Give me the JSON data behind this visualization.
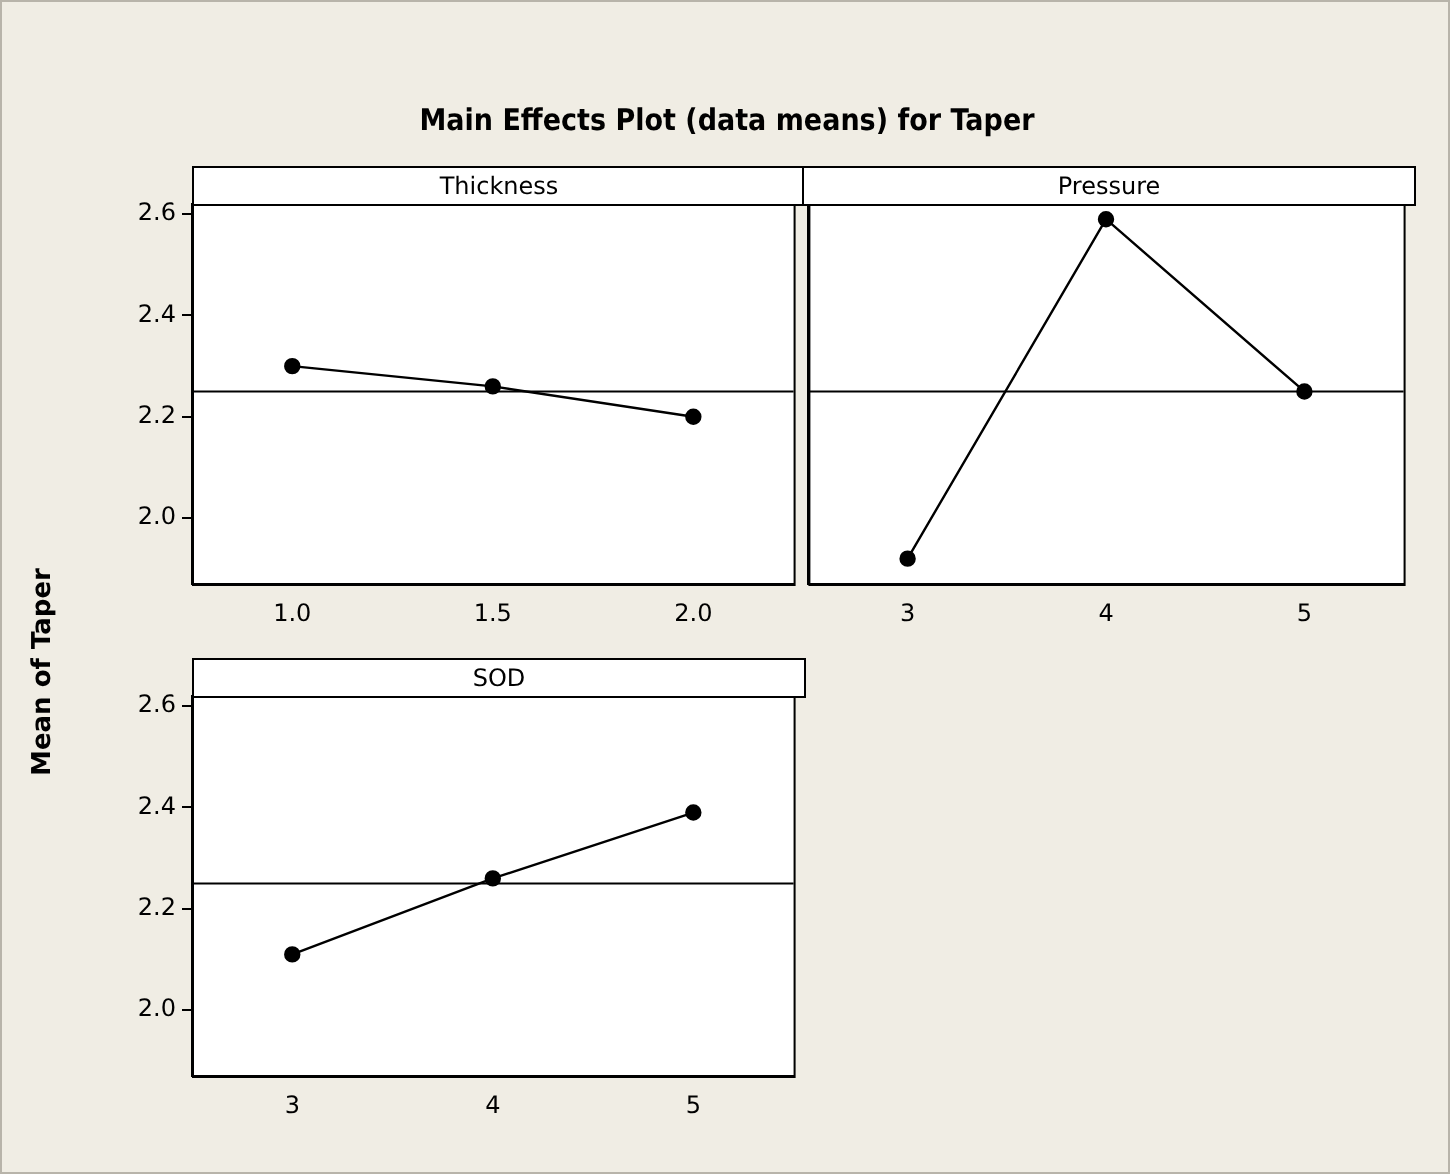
{
  "chart_data": [
    {
      "type": "line",
      "title": "Main Effects Plot (data means) for Taper",
      "ylabel": "Mean of Taper",
      "xlabel": "Thickness",
      "x": [
        1.0,
        1.5,
        2.0
      ],
      "values": [
        2.3,
        2.26,
        2.2
      ],
      "color": "#000000",
      "xlim": [
        0.75,
        2.25
      ],
      "xticks": [
        {
          "value": 1.0,
          "label": "1.0"
        },
        {
          "value": 1.5,
          "label": "1.5"
        },
        {
          "value": 2.0,
          "label": "2.0"
        }
      ],
      "ylim": [
        1.87,
        2.62
      ],
      "yticks": [
        {
          "value": 2.0,
          "label": "2.0"
        },
        {
          "value": 2.2,
          "label": "2.2"
        },
        {
          "value": 2.4,
          "label": "2.4"
        },
        {
          "value": 2.6,
          "label": "2.6"
        }
      ],
      "ref_lines": [
        {
          "axis": "y",
          "value": 2.25,
          "color": "#000000"
        }
      ],
      "marker": "circle",
      "line_style": "solid",
      "grid": false,
      "legend": false
    },
    {
      "type": "line",
      "xlabel": "Pressure",
      "x": [
        3,
        4,
        5
      ],
      "values": [
        1.92,
        2.59,
        2.25
      ],
      "color": "#000000",
      "xlim": [
        2.5,
        5.5
      ],
      "xticks": [
        3,
        4,
        5
      ],
      "ylim": [
        1.87,
        2.62
      ],
      "tick_labels": "x",
      "ref_lines": [
        {
          "axis": "y",
          "value": 2.25,
          "color": "#000000"
        }
      ],
      "marker": "circle",
      "line_style": "solid",
      "grid": false,
      "legend": false
    },
    {
      "type": "line",
      "xlabel": "SOD",
      "x": [
        3,
        4,
        5
      ],
      "values": [
        2.11,
        2.26,
        2.39
      ],
      "color": "#000000",
      "xlim": [
        2.5,
        5.5
      ],
      "xticks": [
        3,
        4,
        5
      ],
      "ylim": [
        1.87,
        2.62
      ],
      "yticks": [
        {
          "value": 2.0,
          "label": "2.0"
        },
        {
          "value": 2.2,
          "label": "2.2"
        },
        {
          "value": 2.4,
          "label": "2.4"
        },
        {
          "value": 2.6,
          "label": "2.6"
        }
      ],
      "ref_lines": [
        {
          "axis": "y",
          "value": 2.25,
          "color": "#000000"
        }
      ],
      "marker": "circle",
      "line_style": "solid",
      "grid": false,
      "legend": false
    }
  ]
}
